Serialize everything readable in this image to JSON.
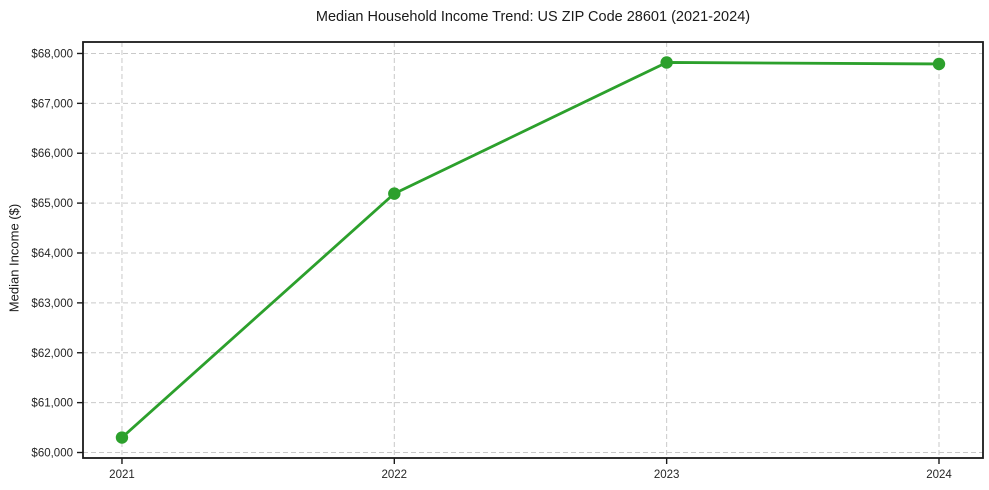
{
  "chart_data": {
    "type": "line",
    "title": "Median Household Income Trend: US ZIP Code 28601 (2021-2024)",
    "xlabel": "",
    "ylabel": "Median Income ($)",
    "categories": [
      "2021",
      "2022",
      "2023",
      "2024"
    ],
    "series": [
      {
        "name": "median-household-income",
        "values": [
          60300,
          65190,
          67820,
          67790
        ],
        "color": "#2ca02c",
        "marker": "circle"
      }
    ],
    "ylim": [
      59890,
      68230
    ],
    "yticks": [
      60000,
      61000,
      62000,
      63000,
      64000,
      65000,
      66000,
      67000,
      68000
    ],
    "ytick_labels": [
      "$60,000",
      "$61,000",
      "$62,000",
      "$63,000",
      "$64,000",
      "$65,000",
      "$66,000",
      "$67,000",
      "$68,000"
    ],
    "grid": "dashed",
    "legend": "none",
    "colors": {
      "grid": "#c9c9c9",
      "frame": "#1a1a1a",
      "text": "#262626",
      "background": "#ffffff"
    }
  }
}
